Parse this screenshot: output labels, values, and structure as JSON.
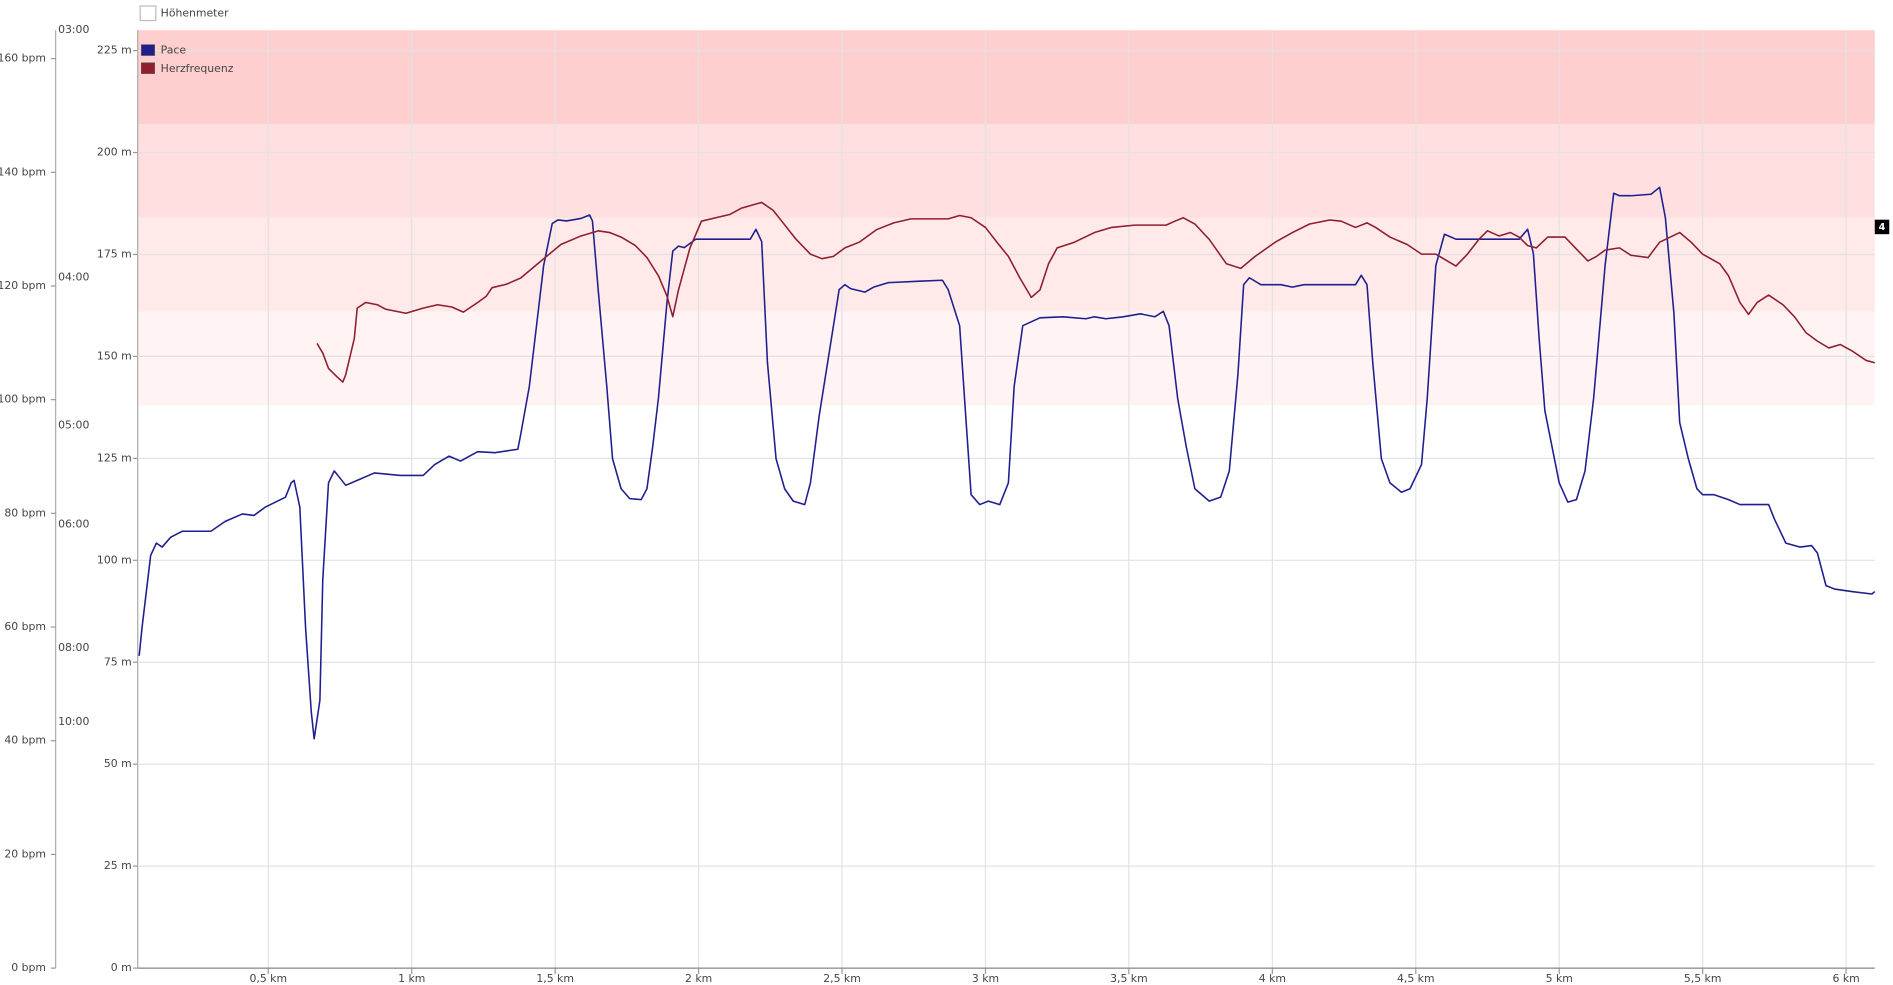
{
  "chart_data": {
    "type": "line",
    "legend_inactive": [
      "Höhenmeter"
    ],
    "side_marker": "4",
    "xlim": [
      0.045,
      6.1
    ],
    "xticks": [
      {
        "value": 0.5,
        "label": "0,5 km"
      },
      {
        "value": 1,
        "label": "1 km"
      },
      {
        "value": 1.5,
        "label": "1,5 km"
      },
      {
        "value": 2,
        "label": "2 km"
      },
      {
        "value": 2.5,
        "label": "2,5 km"
      },
      {
        "value": 3,
        "label": "3 km"
      },
      {
        "value": 3.5,
        "label": "3,5 km"
      },
      {
        "value": 4,
        "label": "4 km"
      },
      {
        "value": 4.5,
        "label": "4,5 km"
      },
      {
        "value": 5,
        "label": "5 km"
      },
      {
        "value": 5.5,
        "label": "5,5 km"
      },
      {
        "value": 6,
        "label": "6 km"
      }
    ],
    "grid": true,
    "y_axes": [
      {
        "ylim": [
          0,
          165
        ],
        "yticks": [
          {
            "value": 0,
            "label": "0 bpm"
          },
          {
            "value": 20,
            "label": "20 bpm"
          },
          {
            "value": 40,
            "label": "40 bpm"
          },
          {
            "value": 60,
            "label": "60 bpm"
          },
          {
            "value": 80,
            "label": "80 bpm"
          },
          {
            "value": 100,
            "label": "100 bpm"
          },
          {
            "value": 120,
            "label": "120 bpm"
          },
          {
            "value": 140,
            "label": "140 bpm"
          },
          {
            "value": 160,
            "label": "160 bpm"
          }
        ]
      },
      {
        "ylim": [
          1.02,
          20
        ],
        "yticks": [
          {
            "value": 20,
            "label": "03:00"
          },
          {
            "value": 15,
            "label": "04:00"
          },
          {
            "value": 12,
            "label": "05:00"
          },
          {
            "value": 10,
            "label": "06:00"
          },
          {
            "value": 7.5,
            "label": "08:00"
          },
          {
            "value": 6,
            "label": "10:00"
          }
        ]
      },
      {
        "ylim": [
          0,
          230
        ],
        "yticks": [
          {
            "value": 0,
            "label": "0 m"
          },
          {
            "value": 25,
            "label": "25 m"
          },
          {
            "value": 50,
            "label": "50 m"
          },
          {
            "value": 75,
            "label": "75 m"
          },
          {
            "value": 100,
            "label": "100 m"
          },
          {
            "value": 125,
            "label": "125 m"
          },
          {
            "value": 150,
            "label": "150 m"
          },
          {
            "value": 175,
            "label": "175 m"
          },
          {
            "value": 200,
            "label": "200 m"
          },
          {
            "value": 225,
            "label": "225 m"
          }
        ]
      }
    ],
    "zones": [
      {
        "from": 99,
        "to": 115.5,
        "color": "#fff3f3"
      },
      {
        "from": 115.5,
        "to": 132,
        "color": "#ffe9e9"
      },
      {
        "from": 132,
        "to": 148.5,
        "color": "#ffdfdf"
      },
      {
        "from": 148.5,
        "to": 165,
        "color": "#ffcfcf"
      }
    ],
    "series": [
      {
        "name": "Pace",
        "color": "#1f1f8f",
        "axis": 1,
        "x": [
          0.05,
          0.06,
          0.09,
          0.11,
          0.13,
          0.16,
          0.2,
          0.3,
          0.35,
          0.41,
          0.45,
          0.49,
          0.56,
          0.58,
          0.59,
          0.61,
          0.63,
          0.65,
          0.66,
          0.68,
          0.69,
          0.71,
          0.73,
          0.74,
          0.77,
          0.81,
          0.87,
          0.96,
          1.04,
          1.08,
          1.13,
          1.17,
          1.23,
          1.29,
          1.37,
          1.38,
          1.41,
          1.43,
          1.46,
          1.49,
          1.51,
          1.54,
          1.59,
          1.62,
          1.63,
          1.65,
          1.68,
          1.7,
          1.73,
          1.76,
          1.8,
          1.82,
          1.84,
          1.86,
          1.89,
          1.91,
          1.93,
          1.95,
          1.99,
          2.03,
          2.11,
          2.18,
          2.2,
          2.22,
          2.24,
          2.27,
          2.3,
          2.33,
          2.37,
          2.39,
          2.42,
          2.45,
          2.49,
          2.51,
          2.53,
          2.58,
          2.61,
          2.66,
          2.77,
          2.85,
          2.87,
          2.91,
          2.93,
          2.95,
          2.98,
          3.01,
          3.05,
          3.08,
          3.1,
          3.13,
          3.19,
          3.27,
          3.35,
          3.38,
          3.42,
          3.48,
          3.54,
          3.59,
          3.62,
          3.64,
          3.67,
          3.7,
          3.73,
          3.78,
          3.82,
          3.85,
          3.88,
          3.9,
          3.92,
          3.96,
          4.03,
          4.07,
          4.11,
          4.26,
          4.29,
          4.31,
          4.33,
          4.35,
          4.38,
          4.41,
          4.45,
          4.48,
          4.52,
          4.54,
          4.57,
          4.6,
          4.64,
          4.7,
          4.79,
          4.86,
          4.89,
          4.91,
          4.93,
          4.95,
          5.0,
          5.03,
          5.06,
          5.09,
          5.12,
          5.16,
          5.19,
          5.21,
          5.25,
          5.32,
          5.35,
          5.37,
          5.4,
          5.42,
          5.45,
          5.48,
          5.5,
          5.54,
          5.59,
          5.63,
          5.73,
          5.75,
          5.79,
          5.84,
          5.88,
          5.9,
          5.93,
          5.96,
          6.02,
          6.09,
          6.1
        ],
        "values": [
          7.34,
          7.91,
          9.37,
          9.62,
          9.54,
          9.74,
          9.86,
          9.86,
          10.06,
          10.21,
          10.18,
          10.35,
          10.55,
          10.84,
          10.89,
          10.35,
          7.91,
          6.2,
          5.66,
          6.44,
          8.88,
          10.84,
          11.08,
          11.01,
          10.79,
          10.89,
          11.04,
          10.99,
          10.99,
          11.21,
          11.38,
          11.28,
          11.47,
          11.45,
          11.52,
          11.82,
          12.79,
          13.77,
          15.24,
          16.09,
          16.16,
          16.14,
          16.19,
          16.26,
          16.14,
          14.75,
          12.79,
          11.33,
          10.72,
          10.52,
          10.5,
          10.72,
          11.57,
          12.55,
          14.5,
          15.53,
          15.63,
          15.6,
          15.77,
          15.77,
          15.77,
          15.77,
          15.97,
          15.72,
          13.28,
          11.33,
          10.72,
          10.47,
          10.4,
          10.84,
          12.18,
          13.28,
          14.75,
          14.85,
          14.77,
          14.7,
          14.8,
          14.89,
          14.92,
          14.94,
          14.75,
          14.02,
          12.3,
          10.6,
          10.4,
          10.47,
          10.4,
          10.84,
          12.79,
          14.02,
          14.18,
          14.2,
          14.16,
          14.2,
          14.16,
          14.2,
          14.26,
          14.2,
          14.31,
          14.02,
          12.55,
          11.57,
          10.72,
          10.47,
          10.55,
          11.08,
          13.03,
          14.85,
          14.99,
          14.85,
          14.85,
          14.8,
          14.85,
          14.85,
          14.85,
          15.04,
          14.85,
          13.28,
          11.33,
          10.84,
          10.65,
          10.72,
          11.21,
          12.55,
          15.24,
          15.87,
          15.77,
          15.77,
          15.77,
          15.77,
          15.97,
          15.48,
          13.77,
          12.3,
          10.84,
          10.45,
          10.5,
          11.08,
          12.55,
          15.24,
          16.7,
          16.65,
          16.65,
          16.68,
          16.82,
          16.21,
          14.26,
          12.06,
          11.33,
          10.72,
          10.6,
          10.6,
          10.5,
          10.4,
          10.4,
          10.11,
          9.62,
          9.54,
          9.57,
          9.42,
          8.76,
          8.69,
          8.64,
          8.59,
          8.64
        ]
      },
      {
        "name": "Herzfrequenz",
        "color": "#8f1f2f",
        "axis": 0,
        "x": [
          0.67,
          0.69,
          0.71,
          0.74,
          0.76,
          0.77,
          0.8,
          0.81,
          0.84,
          0.88,
          0.91,
          0.98,
          1.04,
          1.09,
          1.14,
          1.18,
          1.23,
          1.26,
          1.28,
          1.33,
          1.38,
          1.42,
          1.47,
          1.52,
          1.59,
          1.65,
          1.69,
          1.73,
          1.78,
          1.82,
          1.86,
          1.89,
          1.91,
          1.93,
          1.97,
          2.01,
          2.06,
          2.11,
          2.15,
          2.22,
          2.26,
          2.29,
          2.34,
          2.39,
          2.43,
          2.47,
          2.51,
          2.56,
          2.62,
          2.68,
          2.74,
          2.81,
          2.87,
          2.91,
          2.95,
          3.0,
          3.04,
          3.08,
          3.12,
          3.16,
          3.19,
          3.22,
          3.25,
          3.31,
          3.38,
          3.44,
          3.52,
          3.63,
          3.66,
          3.69,
          3.73,
          3.78,
          3.84,
          3.89,
          3.94,
          4.01,
          4.07,
          4.13,
          4.2,
          4.24,
          4.29,
          4.33,
          4.36,
          4.41,
          4.47,
          4.52,
          4.57,
          4.64,
          4.68,
          4.72,
          4.75,
          4.79,
          4.83,
          4.86,
          4.89,
          4.92,
          4.96,
          5.02,
          5.06,
          5.1,
          5.13,
          5.16,
          5.21,
          5.25,
          5.31,
          5.35,
          5.42,
          5.46,
          5.5,
          5.56,
          5.59,
          5.63,
          5.66,
          5.69,
          5.73,
          5.78,
          5.82,
          5.86,
          5.9,
          5.94,
          5.98,
          6.02,
          6.07,
          6.1
        ],
        "values": [
          109.9,
          108.2,
          105.5,
          104.0,
          103.1,
          104.4,
          110.8,
          116.1,
          117.1,
          116.7,
          115.9,
          115.2,
          116.1,
          116.7,
          116.3,
          115.4,
          117.1,
          118.2,
          119.7,
          120.3,
          121.4,
          123.1,
          125.2,
          127.3,
          128.8,
          129.7,
          129.4,
          128.6,
          127.1,
          125.0,
          121.8,
          118.2,
          114.6,
          119.3,
          126.7,
          131.4,
          132.0,
          132.6,
          133.7,
          134.7,
          133.3,
          131.4,
          128.2,
          125.6,
          124.8,
          125.2,
          126.7,
          127.7,
          129.9,
          131.1,
          131.8,
          131.8,
          131.8,
          132.4,
          132.0,
          130.3,
          127.7,
          125.2,
          121.4,
          118.0,
          119.3,
          123.9,
          126.7,
          127.7,
          129.4,
          130.3,
          130.7,
          130.7,
          131.4,
          132.0,
          130.9,
          128.2,
          123.9,
          123.1,
          125.2,
          127.7,
          129.4,
          130.9,
          131.6,
          131.4,
          130.3,
          131.1,
          130.3,
          128.6,
          127.3,
          125.6,
          125.6,
          123.5,
          125.6,
          128.2,
          129.7,
          128.8,
          129.4,
          128.6,
          127.1,
          126.7,
          128.6,
          128.6,
          126.5,
          124.4,
          125.2,
          126.3,
          126.7,
          125.4,
          125.0,
          127.7,
          129.4,
          127.7,
          125.6,
          123.9,
          121.8,
          117.1,
          115.0,
          117.1,
          118.4,
          116.7,
          114.6,
          111.8,
          110.3,
          109.1,
          109.7,
          108.6,
          106.9,
          106.5
        ]
      }
    ]
  }
}
